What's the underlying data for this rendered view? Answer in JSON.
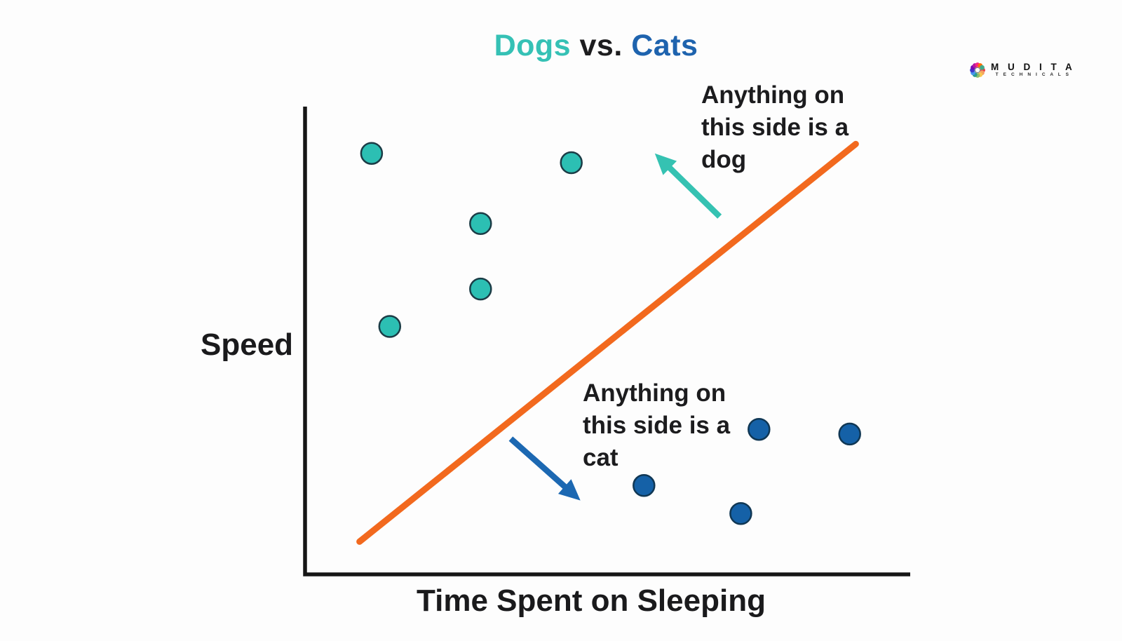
{
  "palette": {
    "background": "#FDFDFD",
    "teal": "#35C1B5",
    "blue": "#1E63AE",
    "orange": "#F2691E",
    "ink": "#1C1C1E",
    "axis": "#161616"
  },
  "title": {
    "parts": [
      {
        "text": "Dogs",
        "color": "#35C1B5"
      },
      {
        "text": " vs. ",
        "color": "#1D1D1F"
      },
      {
        "text": "Cats",
        "color": "#1E63AE"
      }
    ]
  },
  "brand": {
    "name": "M U D I T A",
    "tagline": "T E C H N I C A L S",
    "logo_colors": [
      "#E63946",
      "#F4A261",
      "#F9C74F",
      "#90BE6D",
      "#2A9D8F",
      "#4895EF",
      "#3F37C9",
      "#7209B7",
      "#B5179E",
      "#F72585",
      "#FF6D00",
      "#43AA8B"
    ]
  },
  "chart_data": {
    "type": "scatter",
    "title": "Dogs vs. Cats",
    "xlabel": "Time Spent on Sleeping",
    "ylabel": "Speed",
    "xlim": [
      0,
      10
    ],
    "ylim": [
      0,
      10
    ],
    "grid": false,
    "axis_ticks": false,
    "legend": "none",
    "axis_color": "#161616",
    "series": [
      {
        "name": "Dogs",
        "marker": "circle",
        "color": "#2CBFB3",
        "outline": "#1B3C46",
        "points": [
          [
            1.1,
            9.0
          ],
          [
            4.4,
            8.8
          ],
          [
            2.9,
            7.5
          ],
          [
            2.9,
            6.1
          ],
          [
            1.4,
            5.3
          ]
        ]
      },
      {
        "name": "Cats",
        "marker": "circle",
        "color": "#1561A7",
        "outline": "#103754",
        "points": [
          [
            7.5,
            3.1
          ],
          [
            9.0,
            3.0
          ],
          [
            5.6,
            1.9
          ],
          [
            7.2,
            1.3
          ]
        ]
      }
    ],
    "decision_boundary": {
      "color": "#F2691E",
      "from": [
        0.9,
        0.7
      ],
      "to": [
        9.1,
        9.2
      ]
    },
    "annotations": [
      {
        "name": "dog-side",
        "text": "Anything on\nthis side is a\ndog",
        "arrow": {
          "color": "#35C2B2",
          "from": [
            6.85,
            7.65
          ],
          "to": [
            5.78,
            9.0
          ]
        }
      },
      {
        "name": "cat-side",
        "text": "Anything on\nthis side is a\ncat",
        "arrow": {
          "color": "#1C68B2",
          "from": [
            3.4,
            2.9
          ],
          "to": [
            4.55,
            1.58
          ]
        }
      }
    ]
  }
}
